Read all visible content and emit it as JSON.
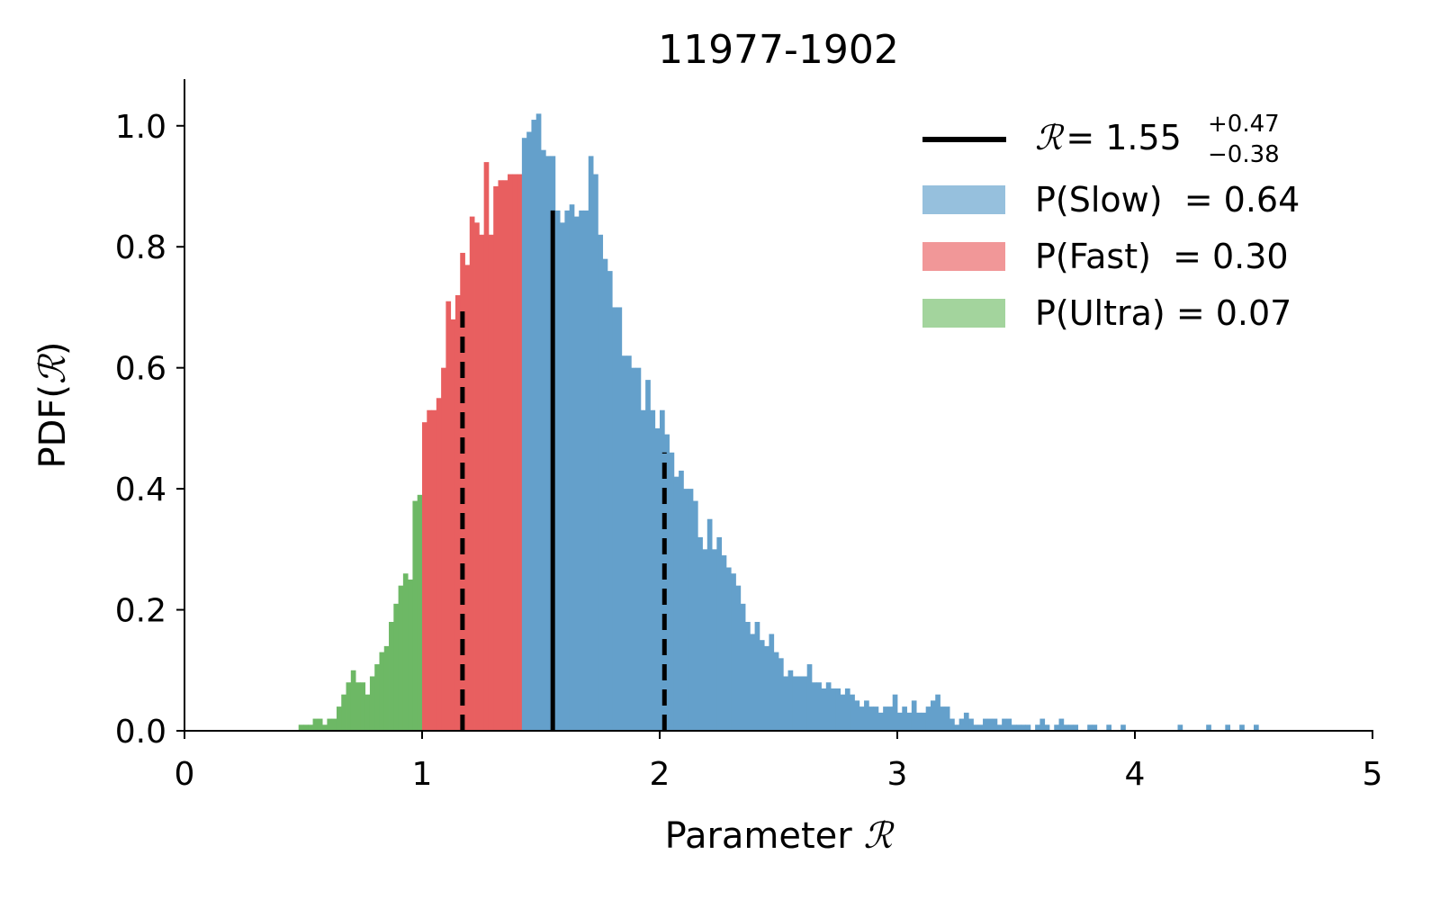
{
  "chart_data": {
    "type": "histogram",
    "title": "11977-1902",
    "xlabel": "Parameter",
    "ylabel": "PDF",
    "symbol": "ℛ",
    "xlim": [
      0,
      5
    ],
    "ylim": [
      0,
      1.08
    ],
    "xticks": [
      "0",
      "1",
      "2",
      "3",
      "4",
      "5"
    ],
    "yticks": [
      "0.0",
      "0.2",
      "0.4",
      "0.6",
      "0.8",
      "1.0"
    ],
    "grid": false,
    "legend_position": "top-right",
    "bin_width": 0.02,
    "median": 1.55,
    "lower": 1.17,
    "upper": 2.02,
    "median_label": "= 1.55",
    "plus_err": "+0.47",
    "minus_err": "−0.38",
    "median_line_height": 0.86,
    "lower_line_height": 0.7,
    "upper_line_height": 0.46,
    "regions": [
      {
        "name": "P(Ultra) = 0.07",
        "from": 0.48,
        "to": 1.0,
        "color": "#6db865"
      },
      {
        "name": "P(Fast)  = 0.30",
        "from": 1.0,
        "to": 1.42,
        "color": "#e85f60"
      },
      {
        "name": "P(Slow)  = 0.64",
        "from": 1.42,
        "to": 5.0,
        "color": "#64a0cb"
      }
    ],
    "legend": [
      {
        "label": "P(Slow)  = 0.64",
        "color": "#96c0dd"
      },
      {
        "label": "P(Fast)  = 0.30",
        "color": "#f19798"
      },
      {
        "label": "P(Ultra) = 0.07",
        "color": "#a3d49d"
      }
    ],
    "histogram": {
      "x_start": 0.48,
      "values": [
        0.01,
        0.01,
        0.01,
        0.02,
        0.02,
        0.01,
        0.02,
        0.02,
        0.04,
        0.06,
        0.08,
        0.1,
        0.08,
        0.08,
        0.06,
        0.09,
        0.11,
        0.13,
        0.14,
        0.18,
        0.21,
        0.24,
        0.26,
        0.25,
        0.38,
        0.39,
        0.51,
        0.53,
        0.53,
        0.55,
        0.6,
        0.71,
        0.68,
        0.72,
        0.79,
        0.77,
        0.85,
        0.84,
        0.82,
        0.94,
        0.82,
        0.9,
        0.91,
        0.91,
        0.92,
        0.92,
        0.92,
        0.98,
        0.99,
        1.01,
        1.02,
        0.96,
        0.95,
        0.95,
        0.86,
        0.84,
        0.86,
        0.87,
        0.85,
        0.86,
        0.86,
        0.95,
        0.92,
        0.82,
        0.78,
        0.76,
        0.7,
        0.7,
        0.62,
        0.62,
        0.6,
        0.6,
        0.53,
        0.58,
        0.53,
        0.5,
        0.53,
        0.49,
        0.46,
        0.42,
        0.43,
        0.4,
        0.4,
        0.38,
        0.32,
        0.3,
        0.35,
        0.3,
        0.32,
        0.29,
        0.27,
        0.26,
        0.24,
        0.21,
        0.18,
        0.16,
        0.18,
        0.15,
        0.14,
        0.16,
        0.13,
        0.12,
        0.09,
        0.1,
        0.09,
        0.09,
        0.09,
        0.11,
        0.08,
        0.08,
        0.07,
        0.08,
        0.07,
        0.07,
        0.06,
        0.07,
        0.06,
        0.05,
        0.04,
        0.05,
        0.04,
        0.04,
        0.03,
        0.04,
        0.04,
        0.06,
        0.03,
        0.04,
        0.03,
        0.05,
        0.03,
        0.03,
        0.04,
        0.05,
        0.06,
        0.04,
        0.04,
        0.02,
        0.01,
        0.02,
        0.03,
        0.02,
        0.01,
        0.01,
        0.02,
        0.02,
        0.02,
        0.01,
        0.02,
        0.02,
        0.01,
        0.01,
        0.01,
        0.01,
        0.0,
        0.01,
        0.02,
        0.01,
        0.0,
        0.01,
        0.02,
        0.01,
        0.01,
        0.01,
        0.0,
        0.0,
        0.01,
        0.01,
        0.0,
        0.0,
        0.01,
        0.0,
        0.0,
        0.01,
        0.0,
        0.0,
        0.0,
        0.0,
        0.0,
        0.0,
        0.0,
        0.0,
        0.0,
        0.0,
        0.0,
        0.01,
        0.0,
        0.0,
        0.0,
        0.0,
        0.0,
        0.01,
        0.0,
        0.0,
        0.0,
        0.01,
        0.0,
        0.0,
        0.01,
        0.0,
        0.0,
        0.01,
        0.0,
        0.0,
        0.0,
        0.0,
        0.0,
        0.0,
        0.0,
        0.0,
        0.0,
        0.0,
        0.0,
        0.0,
        0.0,
        0.0,
        0.0,
        0.0,
        0.0,
        0.0,
        0.0,
        0.0,
        0.0,
        0.0,
        0.0,
        0.0,
        0.0,
        0.0,
        0.0,
        0.0,
        0.0,
        0.0,
        0.0,
        0.0,
        0.0,
        0.0,
        0.0,
        0.0,
        0.0,
        0.0,
        0.0,
        0.0,
        0.0,
        0.0,
        0.0,
        0.01,
        0.0,
        0.0,
        0.0,
        0.0,
        0.0,
        0.0,
        0.0,
        0.0,
        0.0,
        0.0,
        0.01
      ]
    }
  }
}
